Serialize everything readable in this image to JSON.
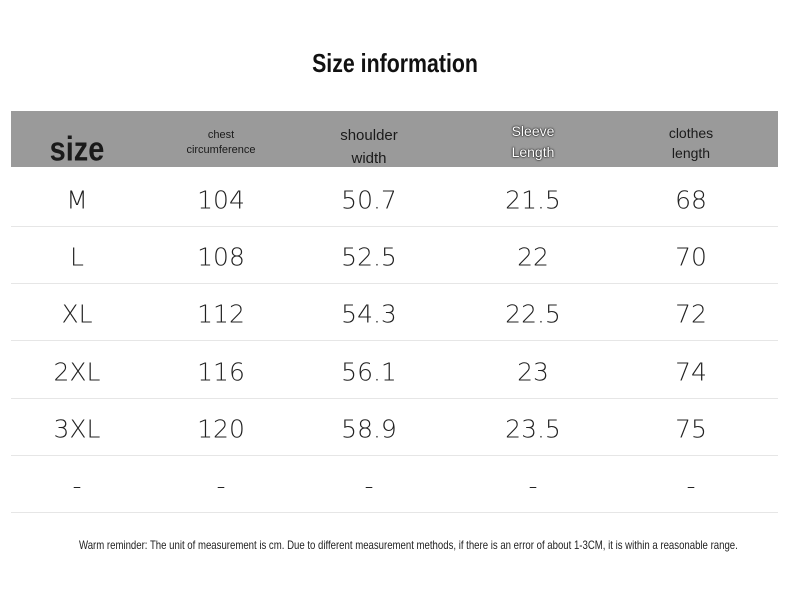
{
  "title": "Size information",
  "table": {
    "header": [
      "size",
      "chest circumference",
      "shoulder width",
      "Sleeve Length",
      "clothes length"
    ],
    "rows": [
      [
        "M",
        104,
        50.7,
        21.5,
        68
      ],
      [
        "L",
        108,
        52.5,
        22,
        70
      ],
      [
        "XL",
        112,
        54.3,
        22.5,
        72
      ],
      [
        "2XL",
        116,
        56.1,
        23,
        74
      ],
      [
        "3XL",
        120,
        58.9,
        23.5,
        75
      ],
      [
        "-",
        "-",
        "-",
        "-",
        "-"
      ]
    ]
  },
  "note": "Warm reminder: The unit of measurement is cm. Due to different measurement methods, if there is an error of about 1-3CM, it is within a reasonable range."
}
